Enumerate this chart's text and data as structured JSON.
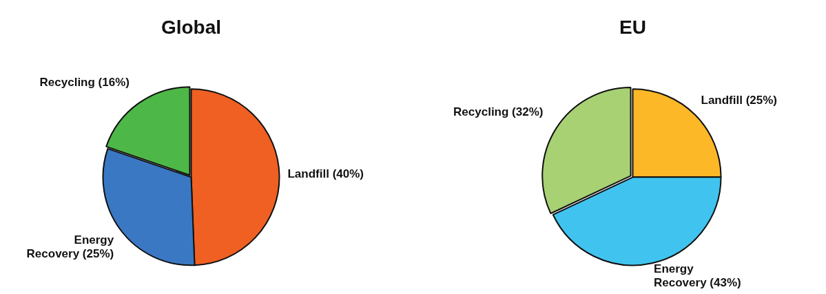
{
  "chart_data": [
    {
      "type": "pie",
      "title": "Global",
      "categories": [
        "Landfill (40%)",
        "Energy Recovery (25%)",
        "Recycling (16%)"
      ],
      "values": [
        40,
        25,
        16
      ],
      "colors": [
        "#f06022",
        "#3a78c4",
        "#4db848"
      ],
      "legend": false
    },
    {
      "type": "pie",
      "title": "EU",
      "categories": [
        "Landfill (25%)",
        "Energy Recovery (43%)",
        "Recycling (32%)"
      ],
      "values": [
        25,
        43,
        32
      ],
      "colors": [
        "#fdb827",
        "#40c4ef",
        "#a8d174"
      ],
      "legend": false
    }
  ]
}
